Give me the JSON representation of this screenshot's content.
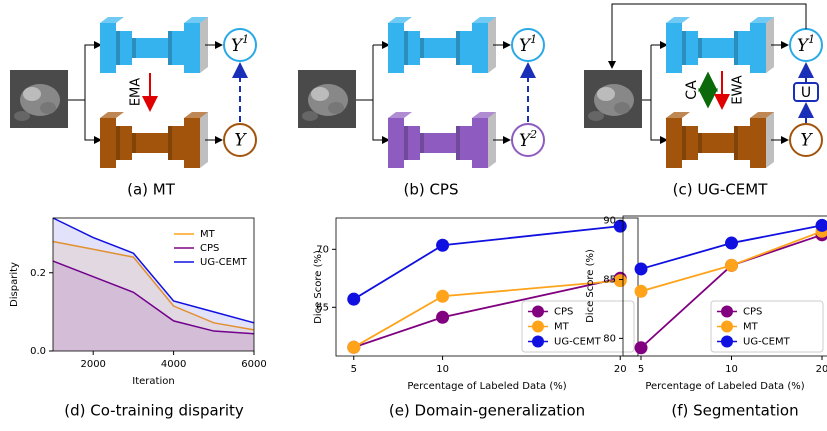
{
  "diagrams": [
    {
      "caption": "(a) MT",
      "outputs": [
        {
          "base": "Y",
          "sup": "1"
        },
        {
          "base": "Y"
        }
      ],
      "arrow_labels": [
        "EMA"
      ]
    },
    {
      "caption": "(b) CPS",
      "outputs": [
        {
          "base": "Y",
          "sup": "1"
        },
        {
          "base": "Y",
          "sup": "2"
        }
      ]
    },
    {
      "caption": "(c) UG-CEMT",
      "outputs": [
        {
          "base": "Y",
          "sup": "1"
        },
        {
          "base": "Y"
        }
      ],
      "arrow_labels": [
        "CA",
        "EWA"
      ],
      "fusion": "U"
    }
  ],
  "chart_data": [
    {
      "type": "line",
      "caption": "(d) Co-training disparity",
      "xlabel": "Iteration",
      "ylabel": "Disparity",
      "x": [
        1000,
        2000,
        3000,
        4000,
        5000,
        6000
      ],
      "xlim": [
        1000,
        6000
      ],
      "xticks": [
        2000,
        4000,
        6000
      ],
      "ylim": [
        0,
        0.34
      ],
      "yticks": [
        {
          "value": 0,
          "label": "0.0"
        },
        0.2
      ],
      "area": true,
      "legend": "upper right",
      "series": [
        {
          "name": "MT",
          "color": "#ffa31a",
          "values": [
            0.28,
            0.26,
            0.24,
            0.115,
            0.072,
            0.054
          ]
        },
        {
          "name": "CPS",
          "color": "#800080",
          "values": [
            0.23,
            0.19,
            0.15,
            0.077,
            0.051,
            0.044
          ]
        },
        {
          "name": "UG-CEMT",
          "color": "#1010e0",
          "values": [
            0.34,
            0.29,
            0.25,
            0.128,
            0.1,
            0.072
          ]
        }
      ]
    },
    {
      "type": "line",
      "caption": "(e) Domain-generalization",
      "xlabel": "Percentage of Labeled Data (%)",
      "ylabel": "Dice Score (%)",
      "x": [
        5,
        10,
        20
      ],
      "xlim": [
        4,
        21
      ],
      "xticks": [
        5,
        10,
        20
      ],
      "ylim": [
        60.8,
        72.7
      ],
      "yticks": [
        65,
        70
      ],
      "markers": true,
      "legend": "lower right",
      "series": [
        {
          "name": "CPS",
          "color": "#800080",
          "values": [
            61.55,
            64.14,
            67.5
          ]
        },
        {
          "name": "MT",
          "color": "#ffa31a",
          "values": [
            61.55,
            65.95,
            67.3
          ]
        },
        {
          "name": "UG-CEMT",
          "color": "#1010e0",
          "values": [
            65.7,
            70.35,
            72.0
          ]
        }
      ]
    },
    {
      "type": "line",
      "caption": "(f) Segmentation",
      "xlabel": "Percentage of Labeled Data (%)",
      "ylabel": "Dice Score (%)",
      "categories": [
        "5",
        "10",
        "20"
      ],
      "ylim": [
        78.5,
        90.4
      ],
      "yticks": [
        80,
        85,
        90
      ],
      "markers": true,
      "legend": "lower right",
      "series": [
        {
          "name": "CPS",
          "color": "#800080",
          "values": [
            79.2,
            86.2,
            88.8
          ]
        },
        {
          "name": "MT",
          "color": "#ffa31a",
          "values": [
            84.0,
            86.2,
            89.1
          ]
        },
        {
          "name": "UG-CEMT",
          "color": "#1010e0",
          "values": [
            85.9,
            88.1,
            89.6
          ]
        }
      ]
    }
  ]
}
